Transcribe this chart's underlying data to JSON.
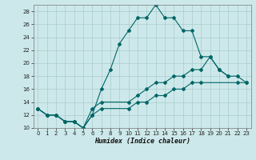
{
  "xlabel": "Humidex (Indice chaleur)",
  "bg_color": "#cde8ea",
  "grid_color": "#a8cccc",
  "line_color": "#006666",
  "xlim": [
    -0.5,
    23.5
  ],
  "ylim": [
    10,
    29
  ],
  "yticks": [
    10,
    12,
    14,
    16,
    18,
    20,
    22,
    24,
    26,
    28
  ],
  "xticks": [
    0,
    1,
    2,
    3,
    4,
    5,
    6,
    7,
    8,
    9,
    10,
    11,
    12,
    13,
    14,
    15,
    16,
    17,
    18,
    19,
    20,
    21,
    22,
    23
  ],
  "line1_x": [
    0,
    1,
    2,
    3,
    4,
    5,
    6,
    7,
    8,
    9,
    10,
    11,
    12,
    13,
    14,
    15,
    16,
    17,
    18,
    19,
    20,
    21
  ],
  "line1_y": [
    13,
    12,
    12,
    11,
    11,
    10,
    12,
    16,
    19,
    23,
    25,
    27,
    27,
    29,
    27,
    27,
    25,
    25,
    21,
    21,
    19,
    18
  ],
  "line2_x": [
    0,
    1,
    2,
    3,
    4,
    5,
    6,
    7,
    10,
    11,
    12,
    13,
    14,
    15,
    16,
    17,
    18,
    19,
    20,
    21,
    22,
    23
  ],
  "line2_y": [
    13,
    12,
    12,
    11,
    11,
    10,
    13,
    14,
    14,
    15,
    16,
    17,
    17,
    18,
    18,
    19,
    19,
    21,
    19,
    18,
    18,
    17
  ],
  "line3_x": [
    0,
    1,
    2,
    3,
    4,
    5,
    6,
    7,
    10,
    11,
    12,
    13,
    14,
    15,
    16,
    17,
    18,
    22,
    23
  ],
  "line3_y": [
    13,
    12,
    12,
    11,
    11,
    10,
    12,
    13,
    13,
    14,
    14,
    15,
    15,
    16,
    16,
    17,
    17,
    17,
    17
  ]
}
